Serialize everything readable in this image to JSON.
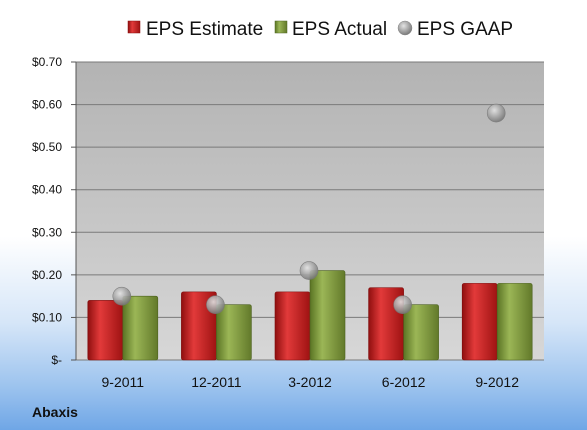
{
  "chart_data": {
    "type": "bar",
    "company": "Abaxis",
    "categories": [
      "9-2011",
      "12-2011",
      "3-2012",
      "6-2012",
      "9-2012"
    ],
    "series": [
      {
        "name": "EPS Estimate",
        "kind": "bar",
        "color": "#cc1f1f",
        "values": [
          0.14,
          0.16,
          0.16,
          0.17,
          0.18
        ]
      },
      {
        "name": "EPS Actual",
        "kind": "bar",
        "color": "#7f9a3c",
        "values": [
          0.15,
          0.13,
          0.21,
          0.13,
          0.18
        ]
      },
      {
        "name": "EPS GAAP",
        "kind": "scatter",
        "color": "#9a9a9a",
        "values": [
          0.15,
          0.13,
          0.21,
          0.13,
          0.58
        ]
      }
    ],
    "ylim": [
      0,
      0.7
    ],
    "yticks": [
      {
        "value": 0,
        "label": "$-"
      },
      {
        "value": 0.1,
        "label": "$0.10"
      },
      {
        "value": 0.2,
        "label": "$0.20"
      },
      {
        "value": 0.3,
        "label": "$0.30"
      },
      {
        "value": 0.4,
        "label": "$0.40"
      },
      {
        "value": 0.5,
        "label": "$0.50"
      },
      {
        "value": 0.6,
        "label": "$0.60"
      },
      {
        "value": 0.7,
        "label": "$0.70"
      }
    ],
    "grid": true,
    "legend_position": "top"
  }
}
